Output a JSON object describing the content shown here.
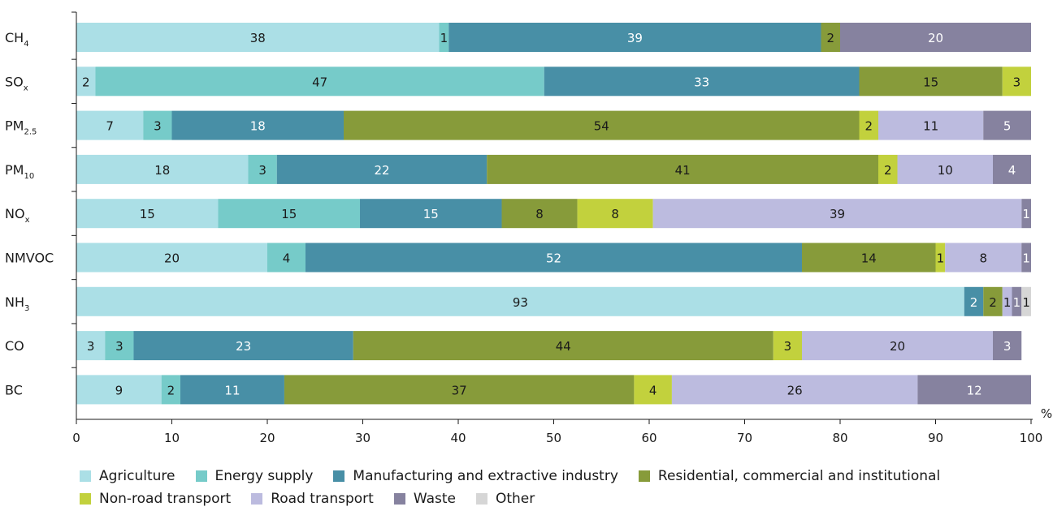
{
  "chart_data": {
    "type": "bar",
    "orientation": "horizontal",
    "stacked": true,
    "title": "",
    "xlabel": "%",
    "ylabel": "",
    "xlim": [
      0,
      100
    ],
    "x_ticks": [
      0,
      10,
      20,
      30,
      40,
      50,
      60,
      70,
      80,
      90,
      100
    ],
    "grid": false,
    "legend_position": "bottom",
    "categories": [
      {
        "main": "CH",
        "sub": "4"
      },
      {
        "main": "SO",
        "sub": "x"
      },
      {
        "main": "PM",
        "sub": "2.5"
      },
      {
        "main": "PM",
        "sub": "10"
      },
      {
        "main": "NO",
        "sub": "x"
      },
      {
        "main": "NMVOC",
        "sub": ""
      },
      {
        "main": "NH",
        "sub": "3"
      },
      {
        "main": "CO",
        "sub": ""
      },
      {
        "main": "BC",
        "sub": ""
      }
    ],
    "series": [
      {
        "name": "Agriculture",
        "color": "#abdfe6",
        "label_color": "#1a1a1a",
        "values": [
          38,
          2,
          7,
          18,
          15,
          20,
          93,
          3,
          9
        ]
      },
      {
        "name": "Energy supply",
        "color": "#76cbc9",
        "label_color": "#1a1a1a",
        "values": [
          1,
          47,
          3,
          3,
          15,
          4,
          0,
          3,
          2
        ]
      },
      {
        "name": "Manufacturing and extractive industry",
        "color": "#488fa6",
        "label_color": "#ffffff",
        "values": [
          39,
          33,
          18,
          22,
          15,
          52,
          2,
          23,
          11
        ]
      },
      {
        "name": "Residential, commercial and institutional",
        "color": "#879b3a",
        "label_color": "#1a1a1a",
        "values": [
          2,
          15,
          54,
          41,
          8,
          14,
          2,
          44,
          37
        ]
      },
      {
        "name": "Non-road transport",
        "color": "#c2d13d",
        "label_color": "#1a1a1a",
        "values": [
          0,
          3,
          2,
          2,
          8,
          1,
          0,
          3,
          4
        ]
      },
      {
        "name": "Road transport",
        "color": "#bcbbdf",
        "label_color": "#1a1a1a",
        "values": [
          0,
          0,
          11,
          10,
          39,
          8,
          1,
          20,
          26
        ]
      },
      {
        "name": "Waste",
        "color": "#86829f",
        "label_color": "#ffffff",
        "values": [
          20,
          0,
          5,
          4,
          1,
          1,
          1,
          3,
          12
        ]
      },
      {
        "name": "Other",
        "color": "#d6d6d6",
        "label_color": "#1a1a1a",
        "values": [
          0,
          0,
          0,
          0,
          0,
          0,
          1,
          0,
          0
        ]
      }
    ]
  }
}
